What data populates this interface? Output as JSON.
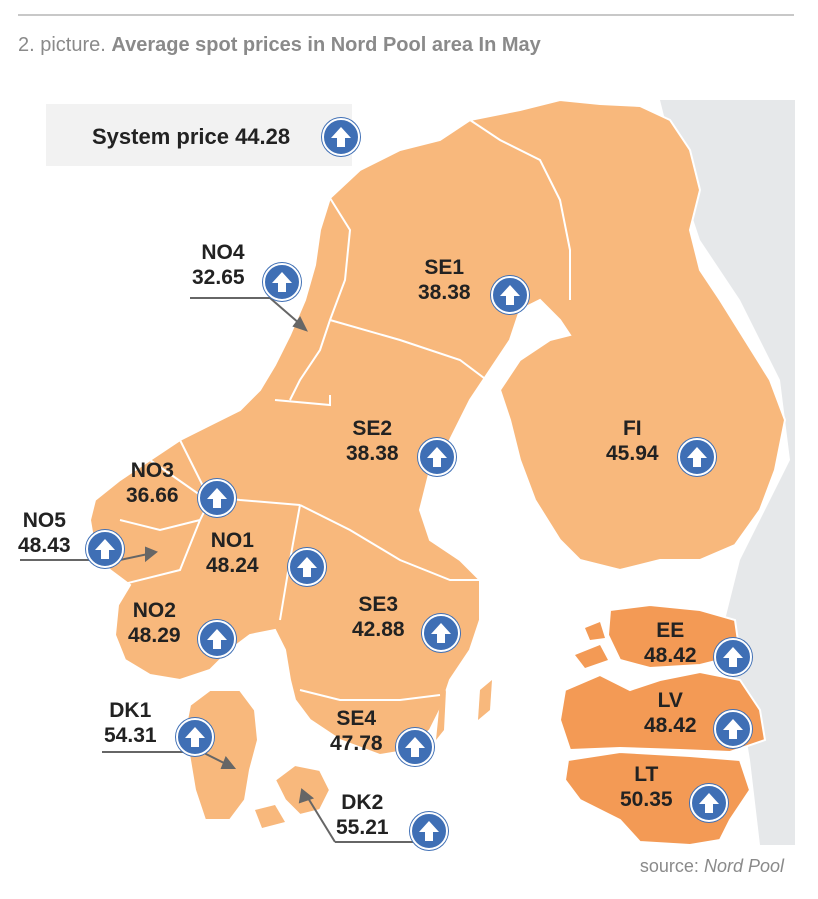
{
  "caption": {
    "prefix": "2. picture.",
    "title": "Average spot prices in Nord Pool area In May"
  },
  "system_price": {
    "label": "System price 44.28",
    "trend_icon": "up-arrow-icon"
  },
  "areas": [
    {
      "code": "NO4",
      "price": "32.65",
      "trend": "up"
    },
    {
      "code": "SE1",
      "price": "38.38",
      "trend": "up"
    },
    {
      "code": "SE2",
      "price": "38.38",
      "trend": "up"
    },
    {
      "code": "FI",
      "price": "45.94",
      "trend": "up"
    },
    {
      "code": "NO3",
      "price": "36.66",
      "trend": "up"
    },
    {
      "code": "NO5",
      "price": "48.43",
      "trend": "up"
    },
    {
      "code": "NO1",
      "price": "48.24",
      "trend": "up"
    },
    {
      "code": "NO2",
      "price": "48.29",
      "trend": "up"
    },
    {
      "code": "SE3",
      "price": "42.88",
      "trend": "up"
    },
    {
      "code": "EE",
      "price": "48.42",
      "trend": "up"
    },
    {
      "code": "LV",
      "price": "48.42",
      "trend": "up"
    },
    {
      "code": "DK1",
      "price": "54.31",
      "trend": "up"
    },
    {
      "code": "SE4",
      "price": "47.78",
      "trend": "up"
    },
    {
      "code": "LT",
      "price": "50.35",
      "trend": "up"
    },
    {
      "code": "DK2",
      "price": "55.21",
      "trend": "up"
    }
  ],
  "source": {
    "prefix": "source:",
    "name": "Nord Pool"
  },
  "colors": {
    "land_nordic": "#f8b87c",
    "land_baltic": "#f39a55",
    "sea": "#ffffff",
    "neighbor_land": "#e6e8ea",
    "borders": "#ffffff",
    "icon": "#3f6fb5",
    "label_text": "#222222"
  }
}
